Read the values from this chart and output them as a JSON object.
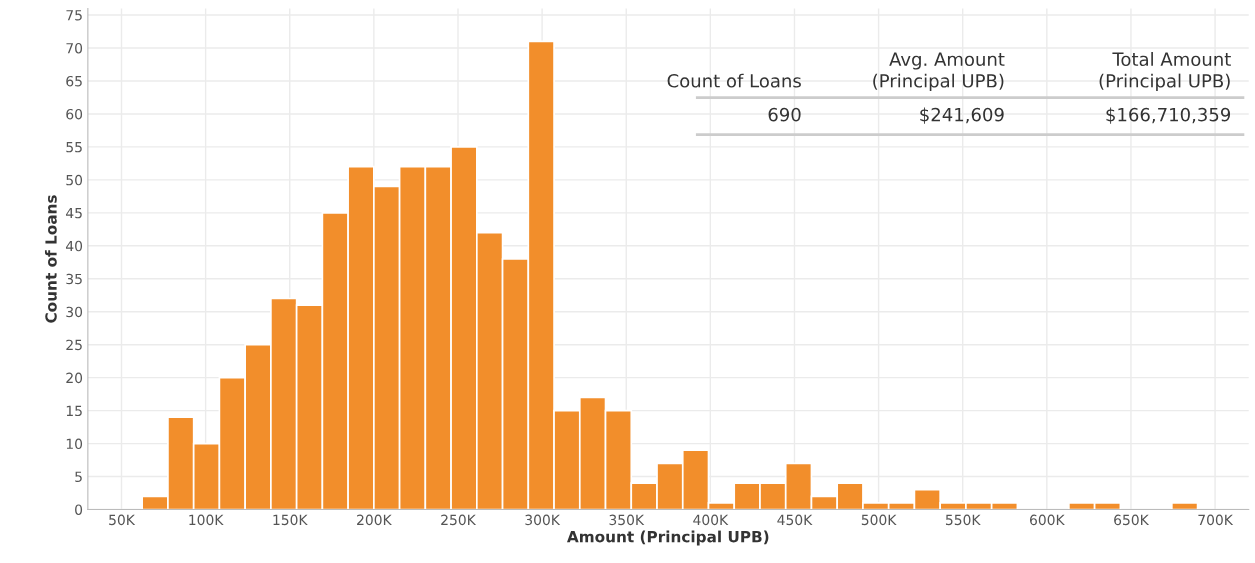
{
  "chart_data": {
    "type": "histogram",
    "xlabel": "Amount (Principal UPB)",
    "ylabel": "Count of Loans",
    "bins": [
      62300,
      77600,
      92900,
      108200,
      123500,
      138800,
      154100,
      169400,
      184700,
      200000,
      215300,
      230600,
      245900,
      261200,
      276500,
      291800,
      307100,
      322400,
      337700,
      353000,
      368300,
      383600,
      398900,
      414200,
      429500,
      444800,
      460100,
      475400,
      490700,
      506000,
      521300,
      536600,
      551900,
      567200,
      582500,
      597800,
      613100,
      628400,
      643700,
      659000,
      674300,
      689600
    ],
    "values": [
      2,
      14,
      10,
      20,
      25,
      32,
      31,
      45,
      52,
      49,
      52,
      52,
      55,
      42,
      38,
      71,
      15,
      17,
      15,
      4,
      7,
      9,
      1,
      4,
      4,
      7,
      2,
      4,
      1,
      1,
      3,
      1,
      1,
      1,
      0,
      0,
      1,
      1,
      0,
      0,
      1
    ],
    "color": "#f28e2b",
    "xlim": [
      30000,
      720000
    ],
    "xticks": [
      {
        "value": 50000,
        "label": "50K"
      },
      {
        "value": 100000,
        "label": "100K"
      },
      {
        "value": 150000,
        "label": "150K"
      },
      {
        "value": 200000,
        "label": "200K"
      },
      {
        "value": 250000,
        "label": "250K"
      },
      {
        "value": 300000,
        "label": "300K"
      },
      {
        "value": 350000,
        "label": "350K"
      },
      {
        "value": 400000,
        "label": "400K"
      },
      {
        "value": 450000,
        "label": "450K"
      },
      {
        "value": 500000,
        "label": "500K"
      },
      {
        "value": 550000,
        "label": "550K"
      },
      {
        "value": 600000,
        "label": "600K"
      },
      {
        "value": 650000,
        "label": "650K"
      },
      {
        "value": 700000,
        "label": "700K"
      }
    ],
    "ylim": [
      0,
      76
    ],
    "yticks": [
      0,
      5,
      10,
      15,
      20,
      25,
      30,
      35,
      40,
      45,
      50,
      55,
      60,
      65,
      70,
      75
    ],
    "grid": true,
    "annotations": [
      "Count of Loans",
      "Avg. Amount\n(Principal UPB)",
      "Total Amount\n(Principal UPB)",
      "690",
      "$241,609",
      "$166,710,359"
    ]
  }
}
